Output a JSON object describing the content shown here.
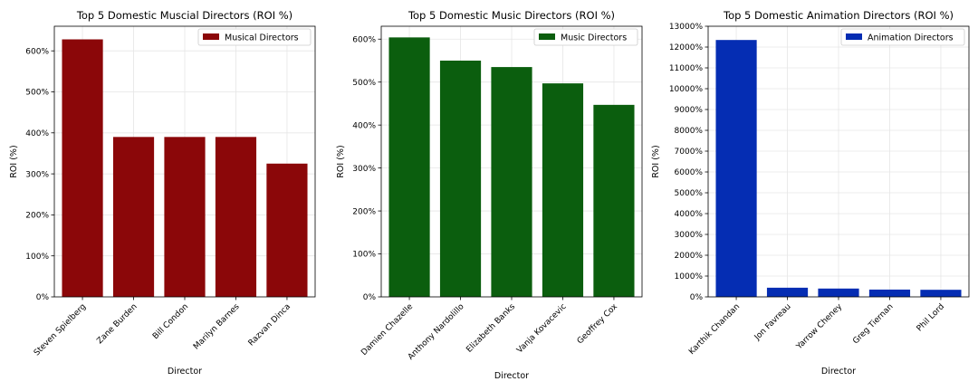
{
  "chart_data": [
    {
      "type": "bar",
      "title": "Top 5 Domestic Muscial Directors (ROI %)",
      "xlabel": "Director",
      "ylabel": "ROI (%)",
      "categories": [
        "Steven Spielberg",
        "Zane Burden",
        "Bill Condon",
        "Marilyn Barnes",
        "Razvan Dinca"
      ],
      "series": [
        {
          "name": "Musical Directors",
          "values": [
            628,
            390,
            390,
            390,
            325
          ]
        }
      ],
      "ylim": [
        0,
        660
      ],
      "yticks": [
        0,
        100,
        200,
        300,
        400,
        500,
        600
      ],
      "ytick_labels": [
        "0%",
        "100%",
        "200%",
        "300%",
        "400%",
        "500%",
        "600%"
      ],
      "color": "#8b0709",
      "grid": true,
      "legend": "top-right"
    },
    {
      "type": "bar",
      "title": "Top 5 Domestic Music Directors (ROI %)",
      "xlabel": "Director",
      "ylabel": "ROI (%)",
      "categories": [
        "Damien Chazelle",
        "Anthony Nardolillo",
        "Elizabeth Banks",
        "Vanja Kovacevic",
        "Geoffrey Cox"
      ],
      "series": [
        {
          "name": "Music Directors",
          "values": [
            604,
            550,
            535,
            497,
            447
          ]
        }
      ],
      "ylim": [
        0,
        630
      ],
      "yticks": [
        0,
        100,
        200,
        300,
        400,
        500,
        600
      ],
      "ytick_labels": [
        "0%",
        "100%",
        "200%",
        "300%",
        "400%",
        "500%",
        "600%"
      ],
      "color": "#0b5e0e",
      "grid": true,
      "legend": "top-right"
    },
    {
      "type": "bar",
      "title": "Top 5 Domestic Animation Directors (ROI %)",
      "xlabel": "Director",
      "ylabel": "ROI (%)",
      "categories": [
        "Karthik Chandan",
        "Jon Favreau",
        "Yarrow Cheney",
        "Greg Tiernan",
        "Phil Lord"
      ],
      "series": [
        {
          "name": "Animation Directors",
          "values": [
            12340,
            440,
            400,
            350,
            340
          ]
        }
      ],
      "ylim": [
        0,
        13000
      ],
      "yticks": [
        0,
        1000,
        2000,
        3000,
        4000,
        5000,
        6000,
        7000,
        8000,
        9000,
        10000,
        11000,
        12000,
        13000
      ],
      "ytick_labels": [
        "0%",
        "1000%",
        "2000%",
        "3000%",
        "4000%",
        "5000%",
        "6000%",
        "7000%",
        "8000%",
        "9000%",
        "10000%",
        "11000%",
        "12000%",
        "13000%"
      ],
      "color": "#052db3",
      "grid": true,
      "legend": "top-right"
    }
  ]
}
